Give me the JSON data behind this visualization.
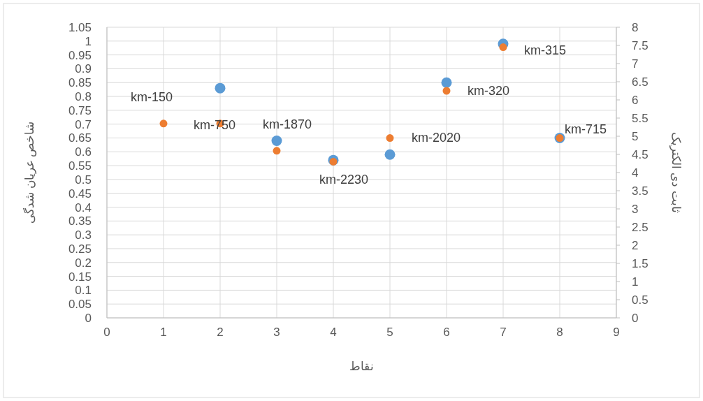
{
  "chart_data": {
    "type": "scatter",
    "xlabel": "نقاط",
    "ylabel": "شاخص عریان شدگی",
    "y2label": "ثابت دی الکتریک",
    "x": [
      1,
      2,
      3,
      4,
      5,
      6,
      7,
      8
    ],
    "series": [
      {
        "color": "#5b9bd5",
        "values": [
          null,
          0.83,
          0.64,
          0.57,
          0.59,
          0.85,
          0.99,
          0.65
        ]
      },
      {
        "color": "#ed7d31",
        "axis": "y2",
        "values": [
          5.35,
          5.35,
          4.6,
          4.3,
          4.95,
          6.25,
          7.45,
          4.95
        ]
      }
    ],
    "xlim": [
      0,
      9
    ],
    "xticks": [
      0,
      1,
      2,
      3,
      4,
      5,
      6,
      7,
      8,
      9
    ],
    "ylim": [
      0,
      1.05
    ],
    "yticks": [
      0,
      0.05,
      0.1,
      0.15,
      0.2,
      0.25,
      0.3,
      0.35,
      0.4,
      0.45,
      0.5,
      0.55,
      0.6,
      0.65,
      0.7,
      0.75,
      0.8,
      0.85,
      0.9,
      0.95,
      1,
      1.05
    ],
    "y2lim": [
      0,
      8
    ],
    "y2ticks": [
      0,
      0.5,
      1,
      1.5,
      2,
      2.5,
      3,
      3.5,
      4,
      4.5,
      5,
      5.5,
      6,
      6.5,
      7,
      7.5,
      8
    ],
    "grid": true,
    "marker": "circle",
    "annotations": [
      {
        "text": "km-150",
        "x": 1,
        "y": 0.7
      },
      {
        "text": "km-750",
        "x": 2,
        "y": 0.7
      },
      {
        "text": "km-1870",
        "x": 3,
        "y": 0.64
      },
      {
        "text": "km-2230",
        "x": 4,
        "y": 0.565
      },
      {
        "text": "km-2020",
        "x": 5,
        "y": 0.65
      },
      {
        "text": "km-320",
        "x": 6,
        "y": 0.82
      },
      {
        "text": "km-315",
        "x": 7,
        "y": 0.98
      },
      {
        "text": "km-715",
        "x": 8,
        "y": 0.65
      }
    ]
  }
}
